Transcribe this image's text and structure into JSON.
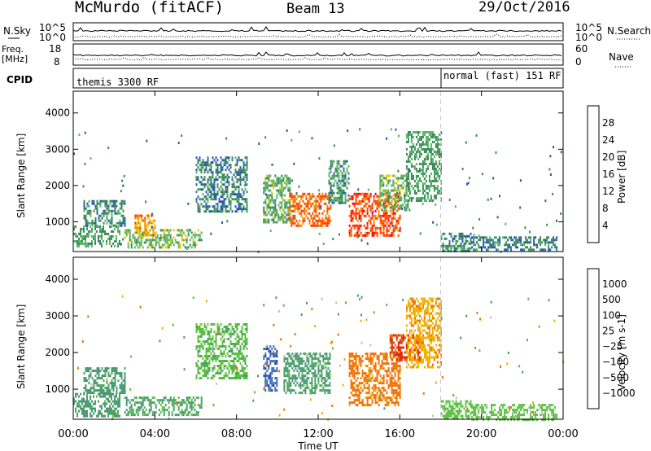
{
  "header": {
    "station": "McMurdo (fitACF)",
    "beam": "Beam 13",
    "date": "29/Oct/2016"
  },
  "summary_panels": {
    "nsky_label": "N.Sky",
    "nsky_ticks": [
      "10^5",
      "10^0"
    ],
    "nsearch_label": "N.Search",
    "nsearch_ticks": [
      "10^5",
      "10^0"
    ],
    "freq_label": "Freq.",
    "freq_unit": "[MHz]",
    "freq_ticks": [
      "18",
      "8"
    ],
    "nave_label": "Nave",
    "nave_ticks": [
      "60",
      "0"
    ],
    "cpid_label": "CPID",
    "cpid_segments": [
      "themis 3300 RF",
      "normal (fast) 151 RF"
    ]
  },
  "chart_data": [
    {
      "type": "heatmap",
      "parameter": "power",
      "ylabel": "Slant Range [km]",
      "yticks": [
        1000,
        2000,
        3000,
        4000
      ],
      "ylim": [
        180,
        4600
      ],
      "xlim": [
        0,
        24
      ],
      "colorbar_label": "Power [dB]",
      "colorbar_ticks": [
        "4",
        "8",
        "12",
        "16",
        "20",
        "24",
        "28"
      ],
      "colorbar_colors": [
        "#0000ff",
        "#2a56b0",
        "#3a8a5a",
        "#5ab46a",
        "#e8c800",
        "#f08c00",
        "#ff4000",
        "#ff0000"
      ],
      "mode_change_hour": 18.0,
      "echo_regions": [
        {
          "t_start": 0.0,
          "t_end": 2.3,
          "range_start": 300,
          "range_end": 900,
          "power_db": 12
        },
        {
          "t_start": 0.5,
          "t_end": 2.5,
          "range_start": 900,
          "range_end": 1600,
          "power_db": 10
        },
        {
          "t_start": 2.5,
          "t_end": 6.3,
          "range_start": 300,
          "range_end": 800,
          "power_db": 14
        },
        {
          "t_start": 3.0,
          "t_end": 4.0,
          "range_start": 600,
          "range_end": 1200,
          "power_db": 22
        },
        {
          "t_start": 6.0,
          "t_end": 8.5,
          "range_start": 1300,
          "range_end": 2800,
          "power_db": 9
        },
        {
          "t_start": 9.3,
          "t_end": 10.6,
          "range_start": 1000,
          "range_end": 2300,
          "power_db": 13
        },
        {
          "t_start": 10.5,
          "t_end": 12.6,
          "range_start": 900,
          "range_end": 1800,
          "power_db": 24
        },
        {
          "t_start": 12.5,
          "t_end": 13.5,
          "range_start": 1500,
          "range_end": 2700,
          "power_db": 11
        },
        {
          "t_start": 13.5,
          "t_end": 16.0,
          "range_start": 600,
          "range_end": 1800,
          "power_db": 26
        },
        {
          "t_start": 15.0,
          "t_end": 16.5,
          "range_start": 1300,
          "range_end": 2300,
          "power_db": 14
        },
        {
          "t_start": 16.3,
          "t_end": 18.0,
          "range_start": 1600,
          "range_end": 3500,
          "power_db": 12
        },
        {
          "t_start": 18.0,
          "t_end": 19.5,
          "range_start": 200,
          "range_end": 700,
          "power_db": 10
        },
        {
          "t_start": 19.5,
          "t_end": 23.7,
          "range_start": 200,
          "range_end": 600,
          "power_db": 9
        }
      ]
    },
    {
      "type": "heatmap",
      "parameter": "velocity",
      "xlabel": "Time UT",
      "ylabel": "Slant Range [km]",
      "xticks": [
        "00:00",
        "04:00",
        "08:00",
        "12:00",
        "16:00",
        "20:00",
        "00:00"
      ],
      "yticks": [
        1000,
        2000,
        3000,
        4000
      ],
      "ylim": [
        180,
        4600
      ],
      "xlim": [
        0,
        24
      ],
      "colorbar_label": "Velocity [m s-1]",
      "colorbar_ticks": [
        "1000",
        "500",
        "100",
        "25",
        "−25",
        "−100",
        "−500",
        "−1000"
      ],
      "colorbar_colors": [
        "#2030a0",
        "#3a6ab8",
        "#4a9a70",
        "#5cc040",
        "#c0c0c0",
        "#f0b000",
        "#f07000",
        "#e02000",
        "#ff0000"
      ],
      "mode_change_hour": 18.0,
      "echo_regions": [
        {
          "t_start": 0.0,
          "t_end": 2.3,
          "range_start": 300,
          "range_end": 900,
          "velocity": 150
        },
        {
          "t_start": 0.5,
          "t_end": 2.5,
          "range_start": 900,
          "range_end": 1600,
          "velocity": 200
        },
        {
          "t_start": 2.5,
          "t_end": 6.3,
          "range_start": 300,
          "range_end": 800,
          "velocity": 120
        },
        {
          "t_start": 6.0,
          "t_end": 8.5,
          "range_start": 1300,
          "range_end": 2800,
          "velocity": 80
        },
        {
          "t_start": 9.3,
          "t_end": 10.0,
          "range_start": 1000,
          "range_end": 2200,
          "velocity": 800
        },
        {
          "t_start": 10.3,
          "t_end": 12.6,
          "range_start": 900,
          "range_end": 2000,
          "velocity": 150
        },
        {
          "t_start": 13.5,
          "t_end": 16.0,
          "range_start": 600,
          "range_end": 2000,
          "velocity": -150
        },
        {
          "t_start": 15.5,
          "t_end": 17.0,
          "range_start": 1800,
          "range_end": 2500,
          "velocity": -600
        },
        {
          "t_start": 16.3,
          "t_end": 18.0,
          "range_start": 1600,
          "range_end": 3500,
          "velocity": -80
        },
        {
          "t_start": 18.0,
          "t_end": 19.5,
          "range_start": 200,
          "range_end": 700,
          "velocity": 60
        },
        {
          "t_start": 19.5,
          "t_end": 23.7,
          "range_start": 200,
          "range_end": 600,
          "velocity": 40
        }
      ]
    }
  ]
}
